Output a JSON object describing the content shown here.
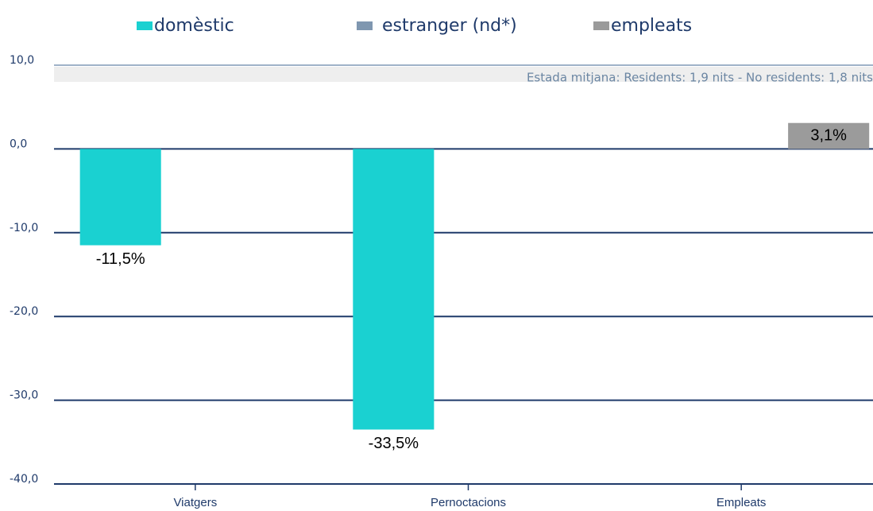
{
  "chart_data": {
    "type": "bar",
    "categories": [
      "Viatgers",
      "Pernoctacions",
      "Empleats"
    ],
    "series": [
      {
        "name": "domèstic",
        "color": "#1ad1d1",
        "values": [
          -11.5,
          -33.5,
          null
        ],
        "value_labels": [
          "-11,5%",
          "-33,5%",
          null
        ]
      },
      {
        "name": "estranger (nd*)",
        "color": "#7f97b0",
        "values": [
          null,
          null,
          null
        ]
      },
      {
        "name": "empleats",
        "color": "#9b9b9b",
        "values": [
          null,
          null,
          3.1
        ],
        "value_labels": [
          null,
          null,
          "3,1%"
        ]
      }
    ],
    "annotation": "Estada mitjana: Residents: 1,9 nits - No residents: 1,8 nits",
    "ylim": [
      -40,
      10
    ],
    "yticks": [
      {
        "value": -40,
        "label": "-40,0"
      },
      {
        "value": -30,
        "label": "-30,0"
      },
      {
        "value": -20,
        "label": "-20,0"
      },
      {
        "value": -10,
        "label": "-10,0"
      },
      {
        "value": 0,
        "label": "0,0"
      },
      {
        "value": 10,
        "label": "10,0"
      }
    ],
    "grid": true
  }
}
